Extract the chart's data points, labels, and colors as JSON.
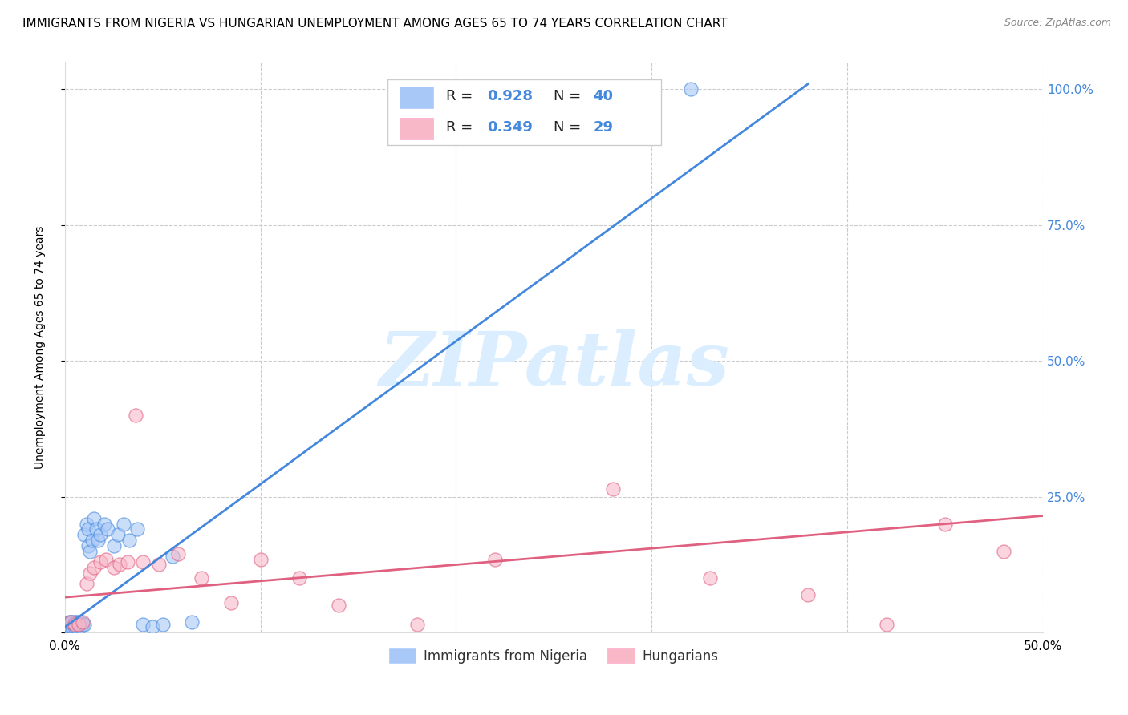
{
  "title": "IMMIGRANTS FROM NIGERIA VS HUNGARIAN UNEMPLOYMENT AMONG AGES 65 TO 74 YEARS CORRELATION CHART",
  "source": "Source: ZipAtlas.com",
  "ylabel": "Unemployment Among Ages 65 to 74 years",
  "xlim": [
    0.0,
    0.5
  ],
  "ylim": [
    0.0,
    1.05
  ],
  "yticks": [
    0.0,
    0.25,
    0.5,
    0.75,
    1.0
  ],
  "ytick_labels": [
    "",
    "25.0%",
    "50.0%",
    "75.0%",
    "100.0%"
  ],
  "xticks": [
    0.0,
    0.1,
    0.2,
    0.3,
    0.4,
    0.5
  ],
  "xtick_labels": [
    "0.0%",
    "",
    "",
    "",
    "",
    "50.0%"
  ],
  "blue_R": 0.928,
  "blue_N": 40,
  "pink_R": 0.349,
  "pink_N": 29,
  "blue_color": "#a8c8f8",
  "pink_color": "#f8b8c8",
  "blue_line_color": "#4488dd",
  "pink_line_color": "#e06080",
  "watermark_color": "#daeeff",
  "blue_scatter_x": [
    0.001,
    0.002,
    0.002,
    0.003,
    0.003,
    0.004,
    0.004,
    0.005,
    0.005,
    0.006,
    0.006,
    0.007,
    0.007,
    0.008,
    0.008,
    0.009,
    0.01,
    0.01,
    0.011,
    0.012,
    0.012,
    0.013,
    0.014,
    0.015,
    0.016,
    0.017,
    0.018,
    0.02,
    0.022,
    0.025,
    0.027,
    0.03,
    0.033,
    0.037,
    0.04,
    0.045,
    0.05,
    0.055,
    0.065,
    0.32
  ],
  "blue_scatter_y": [
    0.01,
    0.01,
    0.02,
    0.01,
    0.02,
    0.01,
    0.02,
    0.01,
    0.02,
    0.01,
    0.02,
    0.015,
    0.02,
    0.01,
    0.02,
    0.015,
    0.18,
    0.015,
    0.2,
    0.16,
    0.19,
    0.15,
    0.17,
    0.21,
    0.19,
    0.17,
    0.18,
    0.2,
    0.19,
    0.16,
    0.18,
    0.2,
    0.17,
    0.19,
    0.015,
    0.01,
    0.015,
    0.14,
    0.02,
    1.0
  ],
  "pink_scatter_x": [
    0.003,
    0.005,
    0.007,
    0.009,
    0.011,
    0.013,
    0.015,
    0.018,
    0.021,
    0.025,
    0.028,
    0.032,
    0.036,
    0.04,
    0.048,
    0.058,
    0.07,
    0.085,
    0.1,
    0.12,
    0.14,
    0.18,
    0.22,
    0.28,
    0.33,
    0.38,
    0.42,
    0.45,
    0.48
  ],
  "pink_scatter_y": [
    0.02,
    0.015,
    0.015,
    0.02,
    0.09,
    0.11,
    0.12,
    0.13,
    0.135,
    0.12,
    0.125,
    0.13,
    0.4,
    0.13,
    0.125,
    0.145,
    0.1,
    0.055,
    0.135,
    0.1,
    0.05,
    0.015,
    0.135,
    0.265,
    0.1,
    0.07,
    0.015,
    0.2,
    0.15
  ],
  "blue_line_x": [
    0.0,
    0.38
  ],
  "blue_line_y": [
    0.01,
    1.01
  ],
  "pink_line_x": [
    0.0,
    0.5
  ],
  "pink_line_y": [
    0.065,
    0.215
  ],
  "legend_label_blue": "Immigrants from Nigeria",
  "legend_label_pink": "Hungarians",
  "title_fontsize": 11,
  "axis_label_fontsize": 10,
  "tick_fontsize": 11,
  "right_tick_color": "#4488dd",
  "legend_text_color": "#4488dd"
}
